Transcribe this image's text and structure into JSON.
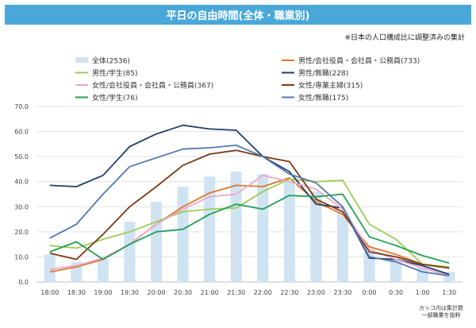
{
  "title": "平日の自由時間(全体・職業別)",
  "note_top": "※日本の人口構成比に調整済みの集計",
  "note_bottom_1": "カッコ内は集計数",
  "note_bottom_2": "一部職業を抜粋",
  "chart_data": {
    "type": "bar+line",
    "title": "平日の自由時間(全体・職業別)",
    "categories": [
      "18:00",
      "18:30",
      "19:00",
      "19:30",
      "20:00",
      "20:30",
      "21:00",
      "21:30",
      "22:00",
      "22:30",
      "23:00",
      "23:30",
      "0:00",
      "0:30",
      "1:00",
      "1:30"
    ],
    "ylim": [
      0,
      70
    ],
    "yticks": [
      "0.0",
      "10.0",
      "20.0",
      "30.0",
      "40.0",
      "50.0",
      "60.0",
      "70.0"
    ],
    "grid": true,
    "legend_position": "top",
    "bar_series": {
      "name": "全体(2536)",
      "color": "#cfe3f3",
      "values": [
        11,
        8,
        9,
        24,
        32,
        38,
        42,
        44,
        43,
        40,
        36,
        28,
        12,
        9,
        6,
        4
      ]
    },
    "series": [
      {
        "name": "男性/会社役員・会社員・公務員(733)",
        "color": "#d9782f",
        "values": [
          4,
          6,
          9,
          15,
          23,
          30,
          35.5,
          38.5,
          38,
          41.5,
          32,
          27,
          14,
          11,
          7,
          6
        ]
      },
      {
        "name": "男性/学生(85)",
        "color": "#9ccd55",
        "values": [
          14.5,
          13.5,
          17,
          20,
          24,
          28,
          29,
          29.5,
          36,
          41,
          40,
          40.5,
          23,
          17,
          7,
          6
        ]
      },
      {
        "name": "男性/無職(228)",
        "color": "#213f6b",
        "values": [
          38.5,
          38,
          42.5,
          54,
          59,
          62.5,
          61,
          60.5,
          50,
          44,
          31,
          29.5,
          9.5,
          9,
          6.5,
          3
        ]
      },
      {
        "name": "女性/会社役員・会社員・公務員(367)",
        "color": "#eda7cb",
        "values": [
          5,
          6.5,
          9.5,
          15,
          23,
          29,
          34,
          35,
          42.5,
          40,
          37,
          29,
          13,
          9,
          5.5,
          2.5
        ]
      },
      {
        "name": "女性/専業主婦(315)",
        "color": "#7a3a14",
        "values": [
          11.5,
          9,
          19,
          30,
          38,
          46.5,
          51,
          52.5,
          50,
          48,
          33,
          28,
          12,
          10,
          7,
          5.5
        ]
      },
      {
        "name": "女性/学生(76)",
        "color": "#20a055",
        "values": [
          12,
          16,
          9,
          15,
          20,
          21,
          27,
          31,
          29,
          34.5,
          34,
          35,
          18,
          14.5,
          10.5,
          7.5
        ]
      },
      {
        "name": "女性/無職(175)",
        "color": "#5077b3",
        "values": [
          17.5,
          23,
          35,
          46,
          49.5,
          53,
          53.5,
          54.5,
          50,
          43,
          39.5,
          30,
          10,
          8,
          4,
          2.5
        ]
      }
    ]
  }
}
